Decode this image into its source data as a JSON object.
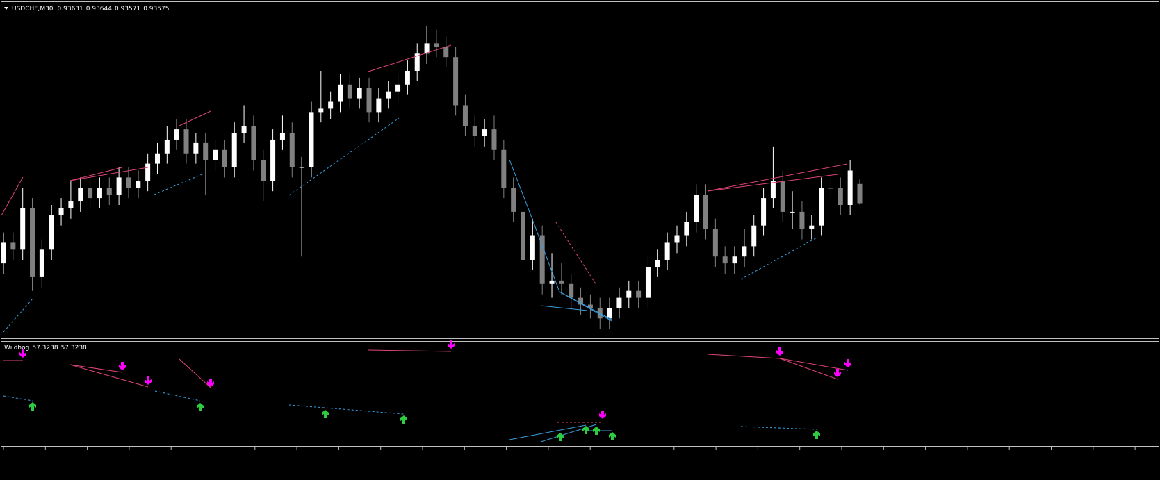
{
  "chart_data": {
    "type": "candlestick",
    "title": "USDCHF,M30",
    "open": [
      0.934,
      0.9346,
      0.9344,
      0.9356,
      0.9336,
      0.9344,
      0.9354,
      0.9356,
      0.9358,
      0.9362,
      0.9359,
      0.9362,
      0.936,
      0.9365,
      0.9362,
      0.9364,
      0.9369,
      0.9372,
      0.9376,
      0.9379,
      0.9372,
      0.9375,
      0.937,
      0.9373,
      0.9368,
      0.9378,
      0.938,
      0.937,
      0.9364,
      0.9376,
      0.9378,
      0.9368,
      0.9368,
      0.9384,
      0.9385,
      0.9387,
      0.9392,
      0.9388,
      0.9391,
      0.9384,
      0.9388,
      0.939,
      0.9392,
      0.9396,
      0.9401,
      0.9404,
      0.9403,
      0.94,
      0.9386,
      0.938,
      0.9377,
      0.9379,
      0.9373,
      0.9362,
      0.9355,
      0.9341,
      0.9348,
      0.9334,
      0.9335,
      0.9334,
      0.933,
      0.9328,
      0.9327,
      0.9324,
      0.9327,
      0.933,
      0.9332,
      0.933,
      0.9339,
      0.9341,
      0.9346,
      0.9348,
      0.9352,
      0.936,
      0.935,
      0.9342,
      0.934,
      0.9342,
      0.9345,
      0.9351,
      0.9359,
      0.9364,
      0.9355,
      0.9355,
      0.935,
      0.9351,
      0.9362,
      0.9362,
      0.9357,
      0.93631
    ],
    "high": [
      0.9349,
      0.9349,
      0.9362,
      0.9359,
      0.9347,
      0.9357,
      0.9359,
      0.9364,
      0.9365,
      0.9365,
      0.9365,
      0.9365,
      0.9368,
      0.9368,
      0.9367,
      0.9372,
      0.9375,
      0.938,
      0.9382,
      0.9382,
      0.9378,
      0.9378,
      0.9376,
      0.9376,
      0.9381,
      0.9386,
      0.9383,
      0.9373,
      0.9379,
      0.9383,
      0.9381,
      0.9371,
      0.9387,
      0.9396,
      0.939,
      0.9395,
      0.9395,
      0.9394,
      0.9394,
      0.9391,
      0.9393,
      0.9395,
      0.9399,
      0.9404,
      0.9409,
      0.9408,
      0.9406,
      0.9403,
      0.9389,
      0.9383,
      0.9382,
      0.9383,
      0.9376,
      0.9365,
      0.9358,
      0.9353,
      0.9351,
      0.9343,
      0.934,
      0.9337,
      0.9333,
      0.9331,
      0.933,
      0.933,
      0.9333,
      0.9335,
      0.9335,
      0.9342,
      0.9344,
      0.9349,
      0.9351,
      0.9355,
      0.9363,
      0.9363,
      0.9353,
      0.9345,
      0.9345,
      0.935,
      0.9354,
      0.9362,
      0.9374,
      0.9367,
      0.9361,
      0.9358,
      0.9354,
      0.9365,
      0.9365,
      0.9365,
      0.937,
      0.93644
    ],
    "low": [
      0.9337,
      0.9341,
      0.9341,
      0.9332,
      0.9333,
      0.9341,
      0.9351,
      0.9353,
      0.9355,
      0.9356,
      0.9356,
      0.9357,
      0.9357,
      0.9359,
      0.9359,
      0.9361,
      0.9366,
      0.9369,
      0.9373,
      0.9369,
      0.9369,
      0.936,
      0.9367,
      0.9365,
      0.9365,
      0.9375,
      0.9367,
      0.9358,
      0.9361,
      0.9373,
      0.9365,
      0.9342,
      0.9365,
      0.9381,
      0.9382,
      0.9384,
      0.9385,
      0.9385,
      0.9381,
      0.9381,
      0.9385,
      0.9387,
      0.9389,
      0.9393,
      0.9398,
      0.94,
      0.9397,
      0.9383,
      0.9377,
      0.9374,
      0.9374,
      0.937,
      0.9359,
      0.9352,
      0.9338,
      0.9338,
      0.9331,
      0.933,
      0.9331,
      0.9327,
      0.9325,
      0.9324,
      0.9321,
      0.9321,
      0.9324,
      0.9327,
      0.9327,
      0.9327,
      0.9336,
      0.9338,
      0.9343,
      0.9345,
      0.9349,
      0.9347,
      0.9339,
      0.9337,
      0.9337,
      0.9339,
      0.9342,
      0.9348,
      0.9356,
      0.9352,
      0.935,
      0.9347,
      0.9347,
      0.9348,
      0.9359,
      0.9354,
      0.9354,
      0.93571
    ],
    "close": [
      0.9346,
      0.9344,
      0.9356,
      0.9336,
      0.9344,
      0.9354,
      0.9356,
      0.9358,
      0.9362,
      0.9359,
      0.9362,
      0.936,
      0.9365,
      0.9362,
      0.9364,
      0.9369,
      0.9372,
      0.9376,
      0.9379,
      0.9372,
      0.9375,
      0.937,
      0.9373,
      0.9368,
      0.9378,
      0.938,
      0.937,
      0.9364,
      0.9376,
      0.9378,
      0.9368,
      0.9368,
      0.9384,
      0.9385,
      0.9387,
      0.9392,
      0.9388,
      0.9391,
      0.9384,
      0.9388,
      0.939,
      0.9392,
      0.9396,
      0.9401,
      0.9404,
      0.9403,
      0.94,
      0.9386,
      0.938,
      0.9377,
      0.9379,
      0.9373,
      0.9362,
      0.9355,
      0.9341,
      0.9348,
      0.9334,
      0.9335,
      0.9334,
      0.933,
      0.9328,
      0.9327,
      0.9324,
      0.9327,
      0.933,
      0.9332,
      0.933,
      0.9339,
      0.9341,
      0.9346,
      0.9348,
      0.9352,
      0.936,
      0.935,
      0.9342,
      0.934,
      0.9342,
      0.9345,
      0.9351,
      0.9359,
      0.9364,
      0.9355,
      0.9355,
      0.935,
      0.9351,
      0.9362,
      0.9362,
      0.9357,
      0.9367,
      0.93575
    ],
    "ylim": [
      0.9318,
      0.9416
    ],
    "up_color": "#ffffff",
    "down_color": "#808080"
  },
  "indicator": {
    "title": "Wildhog",
    "values": [
      57.3238,
      57.3238
    ]
  }
}
